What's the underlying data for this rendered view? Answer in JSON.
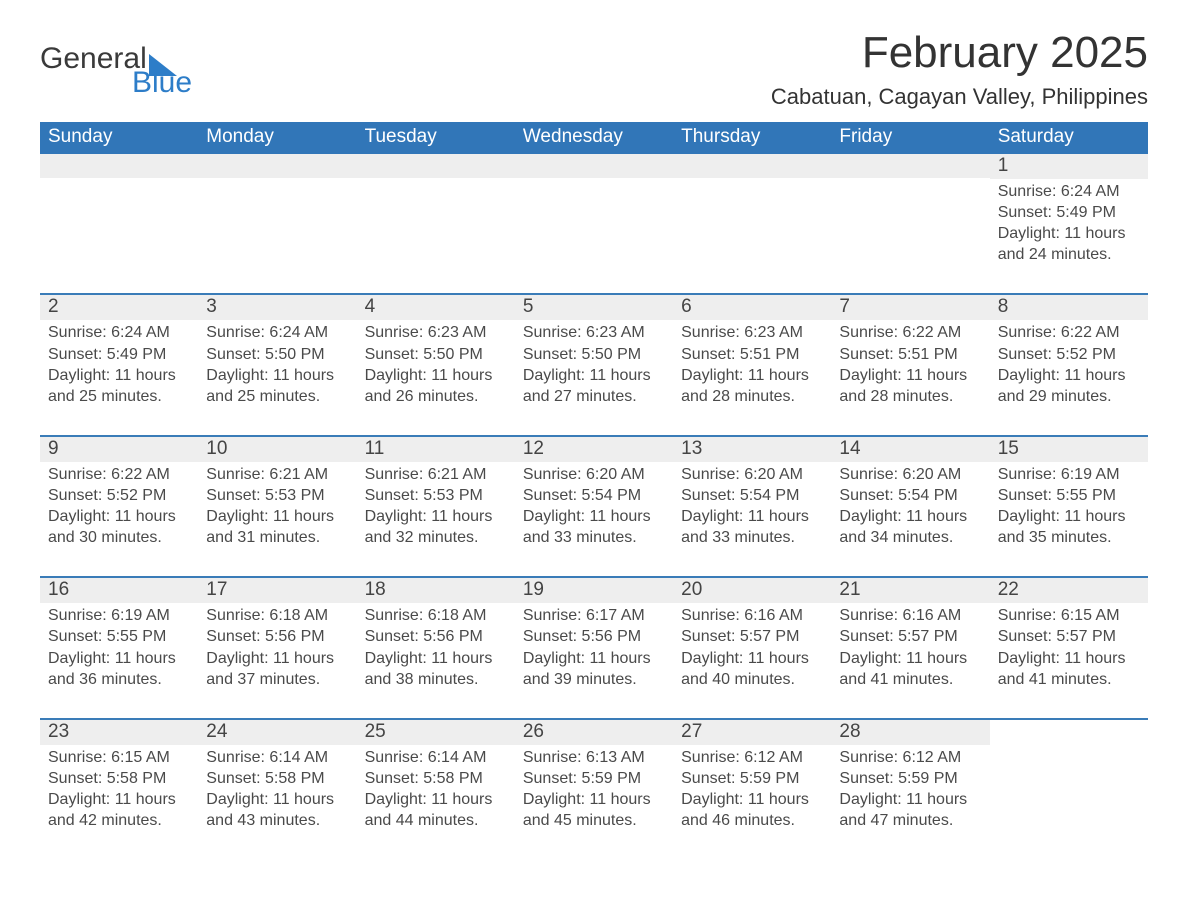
{
  "brand": {
    "word1": "General",
    "word2": "Blue",
    "triangle_color": "#2d7dc8"
  },
  "title": "February 2025",
  "location": "Cabatuan, Cagayan Valley, Philippines",
  "colors": {
    "header_bg": "#3176b8",
    "week_topline": "#3a7cb8",
    "daynum_bg": "#eeeeee",
    "page_bg": "#ffffff",
    "text": "#333333"
  },
  "typography": {
    "title_fontsize_pt": 33,
    "location_fontsize_pt": 17,
    "header_fontsize_pt": 14,
    "cell_fontsize_pt": 12
  },
  "layout": {
    "columns": 7,
    "rows": 5,
    "first_day_column_index": 6
  },
  "day_labels": [
    "Sunday",
    "Monday",
    "Tuesday",
    "Wednesday",
    "Thursday",
    "Friday",
    "Saturday"
  ],
  "field_labels": {
    "sunrise": "Sunrise",
    "sunset": "Sunset",
    "daylight": "Daylight"
  },
  "weeks": [
    [
      null,
      null,
      null,
      null,
      null,
      null,
      {
        "n": "1",
        "sunrise": "6:24 AM",
        "sunset": "5:49 PM",
        "daylight": "11 hours and 24 minutes."
      }
    ],
    [
      {
        "n": "2",
        "sunrise": "6:24 AM",
        "sunset": "5:49 PM",
        "daylight": "11 hours and 25 minutes."
      },
      {
        "n": "3",
        "sunrise": "6:24 AM",
        "sunset": "5:50 PM",
        "daylight": "11 hours and 25 minutes."
      },
      {
        "n": "4",
        "sunrise": "6:23 AM",
        "sunset": "5:50 PM",
        "daylight": "11 hours and 26 minutes."
      },
      {
        "n": "5",
        "sunrise": "6:23 AM",
        "sunset": "5:50 PM",
        "daylight": "11 hours and 27 minutes."
      },
      {
        "n": "6",
        "sunrise": "6:23 AM",
        "sunset": "5:51 PM",
        "daylight": "11 hours and 28 minutes."
      },
      {
        "n": "7",
        "sunrise": "6:22 AM",
        "sunset": "5:51 PM",
        "daylight": "11 hours and 28 minutes."
      },
      {
        "n": "8",
        "sunrise": "6:22 AM",
        "sunset": "5:52 PM",
        "daylight": "11 hours and 29 minutes."
      }
    ],
    [
      {
        "n": "9",
        "sunrise": "6:22 AM",
        "sunset": "5:52 PM",
        "daylight": "11 hours and 30 minutes."
      },
      {
        "n": "10",
        "sunrise": "6:21 AM",
        "sunset": "5:53 PM",
        "daylight": "11 hours and 31 minutes."
      },
      {
        "n": "11",
        "sunrise": "6:21 AM",
        "sunset": "5:53 PM",
        "daylight": "11 hours and 32 minutes."
      },
      {
        "n": "12",
        "sunrise": "6:20 AM",
        "sunset": "5:54 PM",
        "daylight": "11 hours and 33 minutes."
      },
      {
        "n": "13",
        "sunrise": "6:20 AM",
        "sunset": "5:54 PM",
        "daylight": "11 hours and 33 minutes."
      },
      {
        "n": "14",
        "sunrise": "6:20 AM",
        "sunset": "5:54 PM",
        "daylight": "11 hours and 34 minutes."
      },
      {
        "n": "15",
        "sunrise": "6:19 AM",
        "sunset": "5:55 PM",
        "daylight": "11 hours and 35 minutes."
      }
    ],
    [
      {
        "n": "16",
        "sunrise": "6:19 AM",
        "sunset": "5:55 PM",
        "daylight": "11 hours and 36 minutes."
      },
      {
        "n": "17",
        "sunrise": "6:18 AM",
        "sunset": "5:56 PM",
        "daylight": "11 hours and 37 minutes."
      },
      {
        "n": "18",
        "sunrise": "6:18 AM",
        "sunset": "5:56 PM",
        "daylight": "11 hours and 38 minutes."
      },
      {
        "n": "19",
        "sunrise": "6:17 AM",
        "sunset": "5:56 PM",
        "daylight": "11 hours and 39 minutes."
      },
      {
        "n": "20",
        "sunrise": "6:16 AM",
        "sunset": "5:57 PM",
        "daylight": "11 hours and 40 minutes."
      },
      {
        "n": "21",
        "sunrise": "6:16 AM",
        "sunset": "5:57 PM",
        "daylight": "11 hours and 41 minutes."
      },
      {
        "n": "22",
        "sunrise": "6:15 AM",
        "sunset": "5:57 PM",
        "daylight": "11 hours and 41 minutes."
      }
    ],
    [
      {
        "n": "23",
        "sunrise": "6:15 AM",
        "sunset": "5:58 PM",
        "daylight": "11 hours and 42 minutes."
      },
      {
        "n": "24",
        "sunrise": "6:14 AM",
        "sunset": "5:58 PM",
        "daylight": "11 hours and 43 minutes."
      },
      {
        "n": "25",
        "sunrise": "6:14 AM",
        "sunset": "5:58 PM",
        "daylight": "11 hours and 44 minutes."
      },
      {
        "n": "26",
        "sunrise": "6:13 AM",
        "sunset": "5:59 PM",
        "daylight": "11 hours and 45 minutes."
      },
      {
        "n": "27",
        "sunrise": "6:12 AM",
        "sunset": "5:59 PM",
        "daylight": "11 hours and 46 minutes."
      },
      {
        "n": "28",
        "sunrise": "6:12 AM",
        "sunset": "5:59 PM",
        "daylight": "11 hours and 47 minutes."
      },
      null
    ]
  ]
}
